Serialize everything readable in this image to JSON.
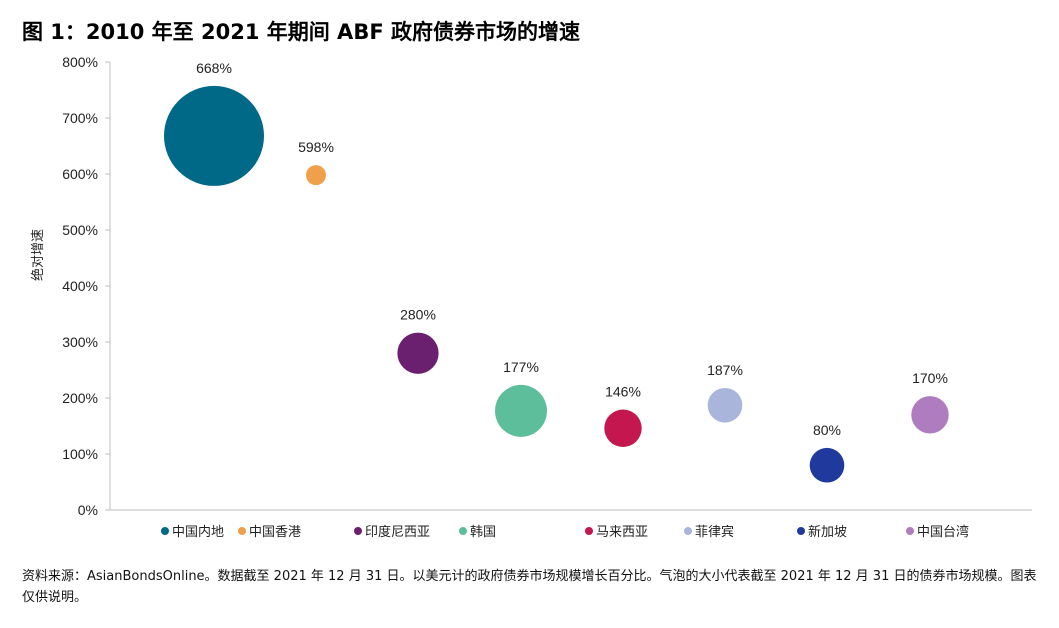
{
  "title": "图 1：2010 年至 2021 年期间 ABF 政府债券市场的增速",
  "note": "资料来源：AsianBondsOnline。数据截至 2021 年 12 月 31 日。以美元计的政府债券市场规模增长百分比。气泡的大小代表截至 2021 年 12 月 31 日的债券市场规模。图表仅供说明。",
  "chart_data": {
    "type": "scatter",
    "title": "图 1：2010 年至 2021 年期间 ABF 政府债券市场的增速",
    "ylabel": "绝对增速",
    "xlabel": "",
    "ylim": [
      0,
      800
    ],
    "yticks": [
      "0%",
      "100%",
      "200%",
      "300%",
      "400%",
      "500%",
      "600%",
      "700%",
      "800%"
    ],
    "grid": false,
    "legend_position": "bottom",
    "series": [
      {
        "name": "中国内地",
        "value": 668,
        "label": "668%",
        "color": "#006987",
        "bubble_size": 100
      },
      {
        "name": "中国香港",
        "value": 598,
        "label": "598%",
        "color": "#F0A04B",
        "bubble_size": 4
      },
      {
        "name": "印度尼西亚",
        "value": 280,
        "label": "280%",
        "color": "#6B1F6F",
        "bubble_size": 17
      },
      {
        "name": "韩国",
        "value": 177,
        "label": "177%",
        "color": "#5DBE9C",
        "bubble_size": 27
      },
      {
        "name": "马来西亚",
        "value": 146,
        "label": "146%",
        "color": "#C4174F",
        "bubble_size": 14
      },
      {
        "name": "菲律宾",
        "value": 187,
        "label": "187%",
        "color": "#A9B5DA",
        "bubble_size": 12
      },
      {
        "name": "新加坡",
        "value": 80,
        "label": "80%",
        "color": "#1F3A9C",
        "bubble_size": 12
      },
      {
        "name": "中国台湾",
        "value": 170,
        "label": "170%",
        "color": "#B07CC0",
        "bubble_size": 14
      }
    ]
  }
}
